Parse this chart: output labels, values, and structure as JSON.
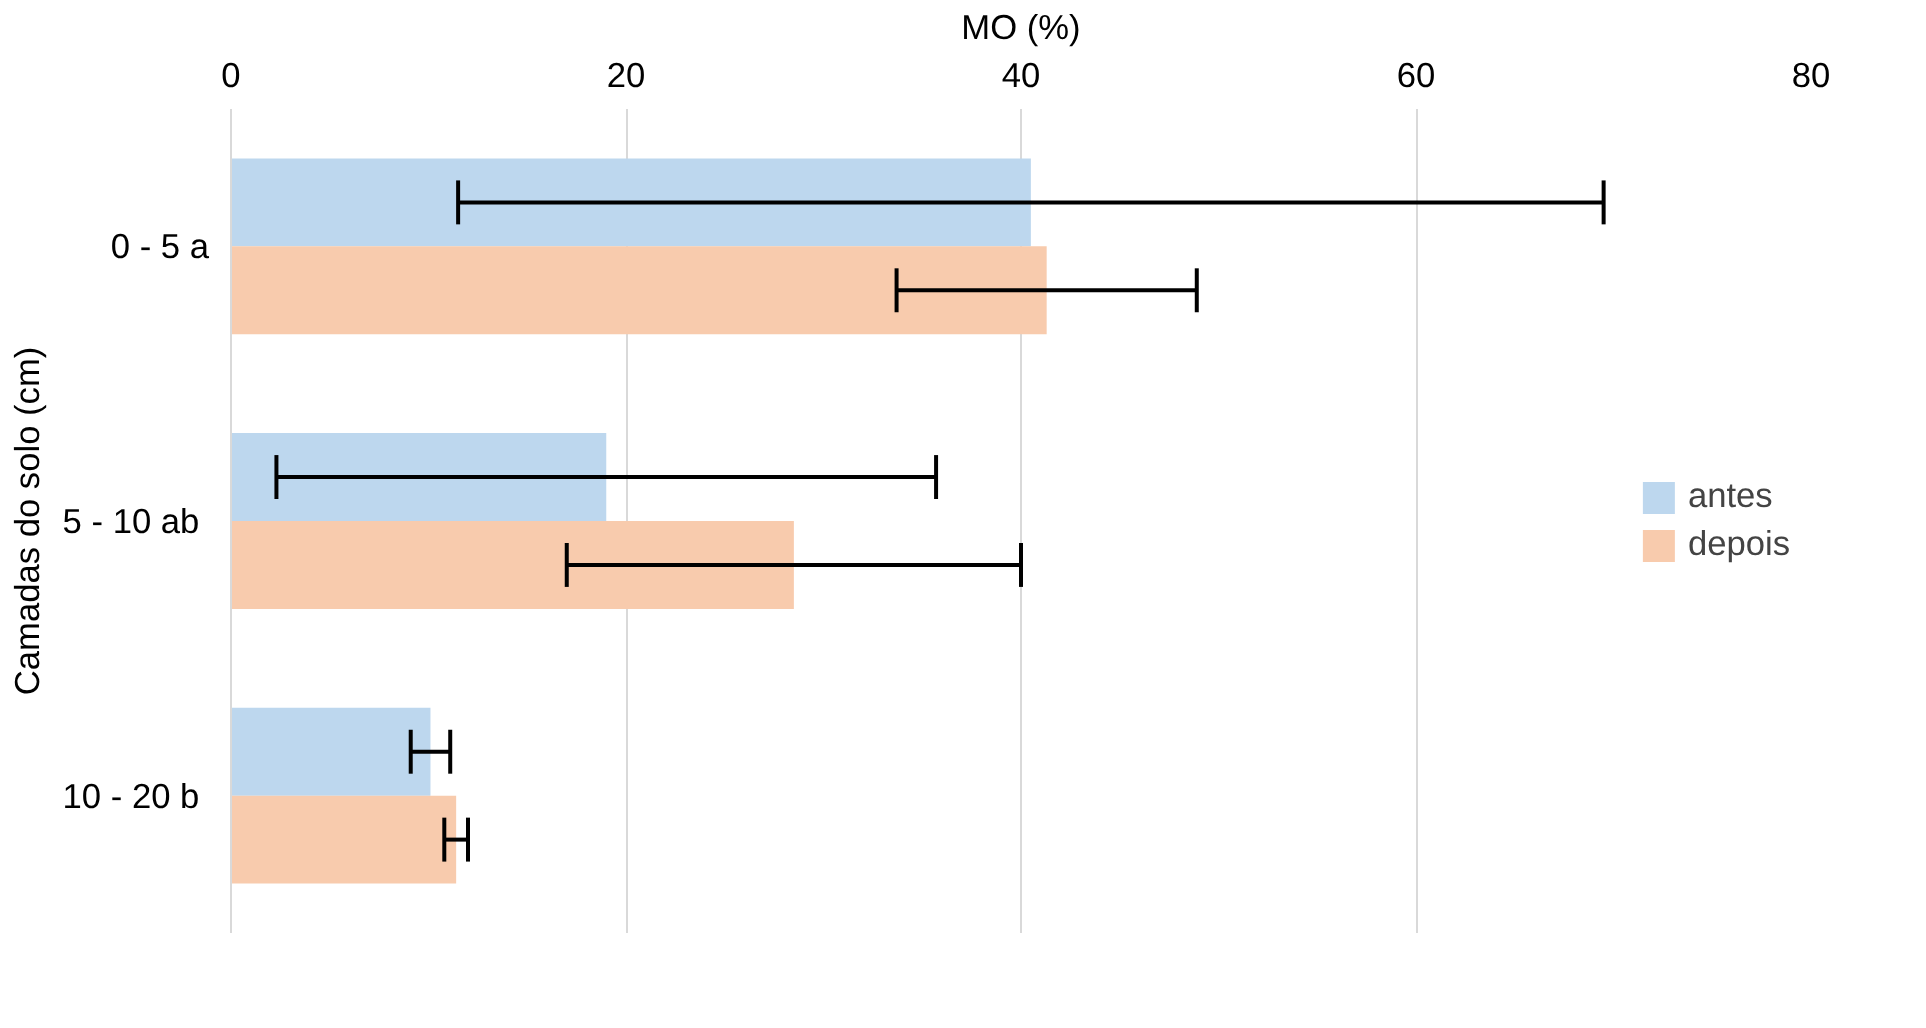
{
  "chart_data": {
    "type": "bar",
    "orientation": "horizontal",
    "xlabel": "MO (%)",
    "ylabel": "Camadas do solo (cm)",
    "categories": [
      "0 - 5 a",
      "5 - 10  ab",
      "10 - 20  b"
    ],
    "series": [
      {
        "name": "antes",
        "color": "#bdd7ee",
        "values": [
          40.5,
          19.0,
          10.1
        ],
        "errors": [
          29,
          16.7,
          1.0
        ]
      },
      {
        "name": "depois",
        "color": "#f8cbad",
        "values": [
          41.3,
          28.5,
          11.4
        ],
        "errors": [
          7.6,
          11.5,
          0.6
        ]
      }
    ],
    "xlim": [
      0,
      80
    ],
    "xticks": [
      0,
      20,
      40,
      60,
      80
    ],
    "grid": "x",
    "legend": "right"
  }
}
